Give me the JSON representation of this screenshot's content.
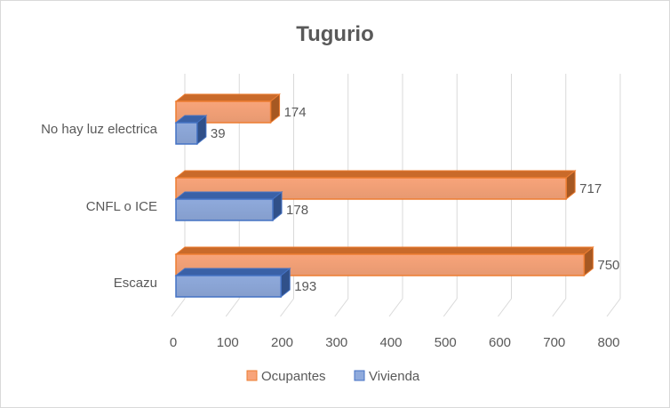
{
  "chart_data": {
    "type": "bar",
    "orientation": "horizontal",
    "style": "3d-clustered",
    "title": "Tugurio",
    "categories": [
      "No hay luz electrica",
      "CNFL o ICE",
      "Escazu"
    ],
    "series": [
      {
        "name": "Ocupantes",
        "values": [
          174,
          717,
          750
        ],
        "color": "#f8a47a",
        "edge_color": "#ed7d31"
      },
      {
        "name": "Vivienda",
        "values": [
          39,
          178,
          193
        ],
        "color": "#8faadc",
        "edge_color": "#4472c4"
      }
    ],
    "xlim": [
      0,
      800
    ],
    "x_ticks": [
      "0",
      "100",
      "200",
      "300",
      "400",
      "500",
      "600",
      "700",
      "800"
    ],
    "grid": true,
    "data_labels": true,
    "legend_position": "bottom"
  }
}
